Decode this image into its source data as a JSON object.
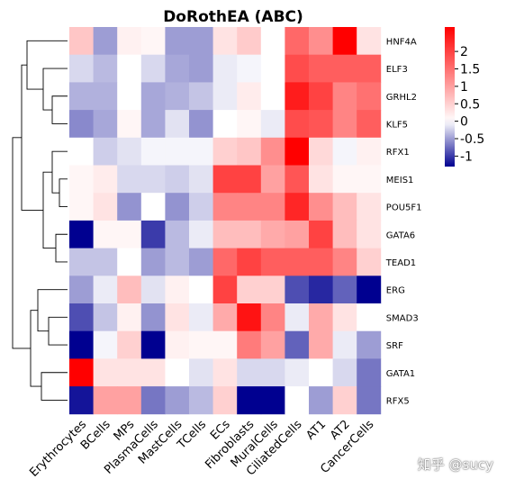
{
  "chart_data": {
    "type": "heatmap",
    "title": "DoRothEA (ABC)",
    "rows": [
      "HNF4A",
      "ELF3",
      "GRHL2",
      "KLF5",
      "RFX1",
      "MEIS1",
      "POU5F1",
      "GATA6",
      "TEAD1",
      "ERG",
      "SMAD3",
      "SRF",
      "GATA1",
      "RFX5"
    ],
    "columns": [
      "Erythrocytes",
      "BCells",
      "MPs",
      "PlasmaCells",
      "MastCells",
      "TCells",
      "ECs",
      "Fibroblasts",
      "MuralCells",
      "CiliatedCells",
      "AT1",
      "AT2",
      "CancerCells"
    ],
    "values": [
      [
        0.6,
        -0.5,
        0.15,
        0.1,
        -0.5,
        -0.5,
        0.3,
        0.55,
        0.0,
        1.6,
        1.2,
        2.7,
        0.3
      ],
      [
        -0.2,
        -0.35,
        0.0,
        -0.2,
        -0.45,
        -0.5,
        -0.1,
        -0.05,
        0.0,
        1.9,
        1.7,
        1.7,
        1.7
      ],
      [
        -0.4,
        -0.4,
        0.0,
        -0.45,
        -0.4,
        -0.3,
        -0.1,
        0.2,
        0.0,
        2.4,
        2.0,
        1.3,
        1.5
      ],
      [
        -0.6,
        -0.45,
        0.1,
        -0.45,
        -0.15,
        -0.55,
        0.0,
        0.1,
        -0.1,
        1.9,
        1.8,
        1.3,
        1.7
      ],
      [
        0.0,
        -0.25,
        -0.15,
        -0.05,
        -0.05,
        -0.05,
        0.5,
        0.6,
        1.2,
        3.0,
        0.4,
        -0.05,
        0.15
      ],
      [
        0.1,
        0.2,
        -0.2,
        -0.2,
        -0.25,
        -0.15,
        2.0,
        2.0,
        1.0,
        1.8,
        0.3,
        0.1,
        0.1
      ],
      [
        0.1,
        0.3,
        -0.55,
        0.0,
        -0.55,
        -0.25,
        1.3,
        1.3,
        1.3,
        2.3,
        1.2,
        0.7,
        0.3
      ],
      [
        -1.5,
        0.1,
        0.1,
        -1.0,
        -0.35,
        -0.1,
        0.7,
        0.7,
        0.9,
        1.0,
        2.0,
        0.7,
        0.3
      ],
      [
        -0.3,
        -0.3,
        0.0,
        -0.5,
        -0.35,
        -0.5,
        1.6,
        2.0,
        1.7,
        1.7,
        1.7,
        1.3,
        0.5
      ],
      [
        -0.5,
        -0.1,
        0.7,
        -0.15,
        0.15,
        0.0,
        2.0,
        0.5,
        0.5,
        -0.9,
        -1.1,
        -0.8,
        -1.6
      ],
      [
        -0.9,
        -0.3,
        0.15,
        -0.55,
        0.3,
        -0.1,
        0.9,
        2.5,
        1.3,
        -0.1,
        0.9,
        0.3,
        0.0
      ],
      [
        -2.0,
        -0.05,
        0.5,
        -1.9,
        0.15,
        0.1,
        0.1,
        1.4,
        1.0,
        -0.8,
        0.9,
        -0.1,
        -0.5
      ],
      [
        2.7,
        0.3,
        0.3,
        0.3,
        0.0,
        -0.15,
        0.3,
        -0.2,
        -0.2,
        -0.1,
        0.0,
        -0.2,
        -0.7
      ],
      [
        -1.2,
        1.0,
        1.0,
        -0.7,
        -0.5,
        -0.35,
        0.5,
        -1.6,
        -1.9,
        0.0,
        -0.5,
        0.5,
        -0.7
      ]
    ],
    "colorbar": {
      "colormap": "bwr",
      "vmin": -1.3,
      "vmax": 2.7,
      "ticks": [
        2,
        1.5,
        1,
        0.5,
        0,
        -0.5,
        -1
      ],
      "tick_labels": [
        "2",
        "1.5",
        "1",
        "0.5",
        "0",
        "-0.5",
        "-1"
      ]
    },
    "row_dendrogram": true,
    "xlabel": "",
    "ylabel": ""
  },
  "watermark": "知乎 @sucy"
}
